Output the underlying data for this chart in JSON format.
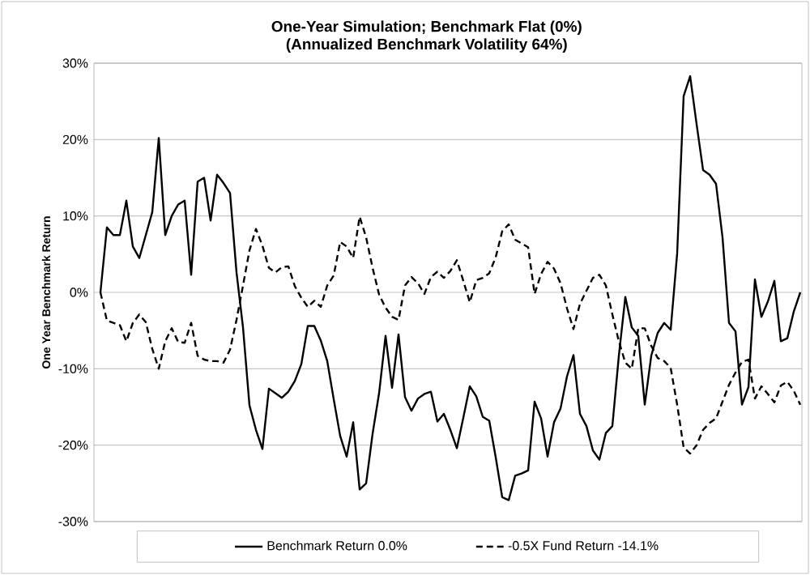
{
  "chart_data": {
    "type": "line",
    "title": "One-Year Simulation; Benchmark Flat (0%)",
    "subtitle": "(Annualized Benchmark Volatility 64%)",
    "ylabel": "One Year Benchmark Return",
    "categories": [
      null,
      null,
      null,
      null,
      null,
      null,
      null,
      null,
      null,
      null,
      null,
      null,
      null,
      null,
      null,
      null,
      null,
      null,
      null,
      null,
      null,
      null,
      null,
      null,
      null,
      null,
      null,
      null,
      null,
      null,
      null,
      null,
      null,
      null,
      null,
      null,
      null,
      null,
      null,
      null,
      null,
      null,
      null,
      null,
      null,
      null,
      null,
      null,
      null,
      null,
      null,
      null,
      null,
      null,
      null,
      null,
      null,
      null,
      null,
      null,
      null,
      null,
      null,
      null,
      null,
      null,
      null,
      null,
      null,
      null,
      null,
      null,
      null,
      null,
      null,
      null,
      null,
      null,
      null,
      null,
      null,
      null,
      null,
      null,
      null,
      null,
      null,
      null,
      null,
      null,
      null,
      null,
      null,
      null,
      null,
      null,
      null,
      null,
      null,
      null,
      null,
      null,
      null,
      null,
      null,
      null,
      null,
      null,
      null
    ],
    "ylim": [
      -30,
      30
    ],
    "yticks": [
      {
        "value": -30,
        "label": "-30%"
      },
      {
        "value": -20,
        "label": "-20%"
      },
      {
        "value": -10,
        "label": "-10%"
      },
      {
        "value": 0,
        "label": "0%"
      },
      {
        "value": 10,
        "label": "10%"
      },
      {
        "value": 20,
        "label": "20%"
      },
      {
        "value": 30,
        "label": "30%"
      }
    ],
    "grid": "y",
    "legend": "bottom",
    "marker": "none",
    "series": [
      {
        "name": "Benchmark Return 0.0%",
        "color": "#000000",
        "line_style": "solid",
        "values": [
          0,
          8.5,
          7.5,
          7.5,
          12,
          6,
          4.5,
          7.5,
          10.5,
          20.2,
          7.5,
          10,
          11.5,
          12,
          2.3,
          14.5,
          15,
          9.4,
          15.4,
          14.3,
          13,
          2.6,
          -4.6,
          -14.8,
          -18,
          -20.5,
          -12.6,
          -13.2,
          -13.8,
          -13,
          -11.6,
          -9.4,
          -4.4,
          -4.4,
          -6.3,
          -9,
          -14,
          -18.8,
          -21.5,
          -17,
          -25.8,
          -25,
          -18.5,
          -13.2,
          -5.7,
          -12.5,
          -5.5,
          -13.7,
          -15.5,
          -13.9,
          -13.3,
          -13,
          -16.9,
          -15.9,
          -18,
          -20.4,
          -16.4,
          -12.3,
          -13.6,
          -16.3,
          -16.8,
          -21.6,
          -26.8,
          -27.2,
          -24,
          -23.7,
          -23.3,
          -14.3,
          -16.5,
          -21.5,
          -17,
          -15.2,
          -11,
          -8.2,
          -15.9,
          -17.5,
          -20.7,
          -21.9,
          -18.4,
          -17.5,
          -8.3,
          -0.6,
          -4.6,
          -5.7,
          -14.7,
          -8.3,
          -5.3,
          -4,
          -4.9,
          5.1,
          25.7,
          28.3,
          22,
          16,
          15.4,
          14.2,
          7.2,
          -4,
          -5.1,
          -14.7,
          -12.4,
          1.7,
          -3.2,
          -1.2,
          1.5,
          -6.4,
          -6,
          -2.5,
          0
        ]
      },
      {
        "name": "-0.5X Fund Return -14.1%",
        "color": "#000000",
        "line_style": "dashed",
        "values": [
          0,
          -3.7,
          -4,
          -4.3,
          -6.4,
          -4,
          -2.9,
          -3.9,
          -7.4,
          -10,
          -6.4,
          -4.7,
          -6.5,
          -6.6,
          -4,
          -8.3,
          -8.8,
          -9,
          -9,
          -9.2,
          -7.5,
          -3.6,
          0.9,
          5.5,
          8.3,
          6.1,
          3.2,
          2.6,
          3.3,
          3.4,
          0.8,
          -0.7,
          -1.9,
          -1.1,
          -1.9,
          0.9,
          2.2,
          6.6,
          6,
          4.5,
          9.9,
          7.2,
          3.2,
          -0.3,
          -2,
          -3.2,
          -3.6,
          0.9,
          2,
          1.2,
          -0.2,
          2,
          2.7,
          1.9,
          2.8,
          4.2,
          1.5,
          -1.3,
          1.6,
          1.9,
          2.5,
          4.6,
          8,
          8.9,
          6.9,
          6.4,
          5.9,
          -0.2,
          2.4,
          4,
          3.1,
          1.2,
          -2.1,
          -4.8,
          -1.5,
          0.2,
          1.9,
          2.3,
          0.9,
          -2.9,
          -6.4,
          -9.2,
          -10,
          -4.7,
          -4.7,
          -7,
          -8.6,
          -9,
          -9.9,
          -14.7,
          -20.3,
          -21.1,
          -20,
          -18,
          -17.1,
          -16.5,
          -14.3,
          -12.1,
          -10.5,
          -9.1,
          -8.8,
          -13.9,
          -12.3,
          -13.3,
          -14.4,
          -12.2,
          -11.7,
          -12.9,
          -14.7
        ]
      }
    ]
  }
}
